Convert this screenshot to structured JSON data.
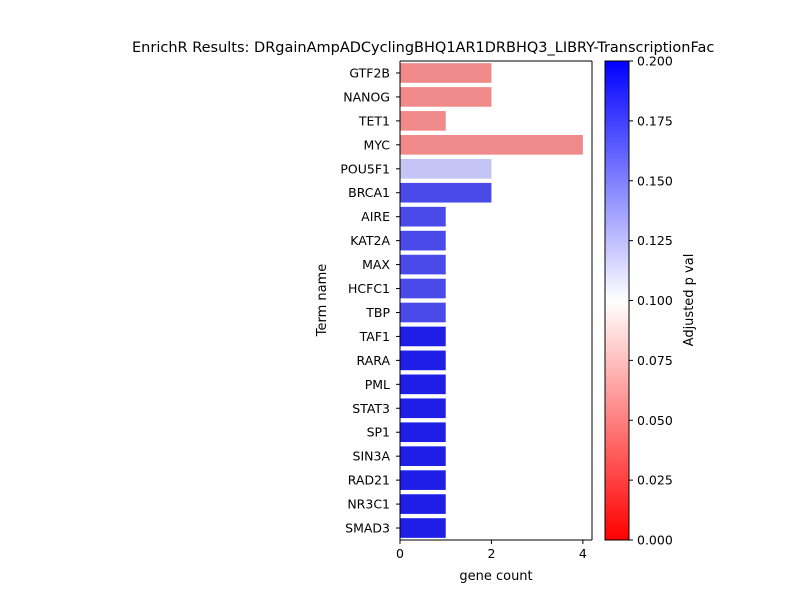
{
  "chart_data": {
    "type": "bar",
    "orientation": "horizontal",
    "title": "EnrichR Results: DRgainAmpADCyclingBHQ1AR1DRBHQ3_LIBRY-TranscriptionFac",
    "xlabel": "gene count",
    "ylabel": "Term name",
    "xlim": [
      0,
      4.2
    ],
    "x_ticks": [
      "0",
      "2",
      "4"
    ],
    "grid": false,
    "categories": [
      "GTF2B",
      "NANOG",
      "TET1",
      "MYC",
      "POU5F1",
      "BRCA1",
      "AIRE",
      "KAT2A",
      "MAX",
      "HCFC1",
      "TBP",
      "TAF1",
      "RARA",
      "PML",
      "STAT3",
      "SP1",
      "SIN3A",
      "RAD21",
      "NR3C1",
      "SMAD3"
    ],
    "values": [
      2,
      2,
      1,
      4,
      2,
      2,
      1,
      1,
      1,
      1,
      1,
      1,
      1,
      1,
      1,
      1,
      1,
      1,
      1,
      1
    ],
    "colors": [
      "#f08a8a",
      "#f08a8a",
      "#f08a8a",
      "#f08a8a",
      "#c4c4f6",
      "#4a4ae8",
      "#4a4ae8",
      "#4a4ae8",
      "#4a4ae8",
      "#4a4ae8",
      "#4a4ae8",
      "#1e1ee6",
      "#1e1ee6",
      "#1e1ee6",
      "#1e1ee6",
      "#1e1ee6",
      "#1e1ee6",
      "#1e1ee6",
      "#1e1ee6",
      "#1e1ee6"
    ],
    "colorbar": {
      "label": "Adjusted p val",
      "range": [
        0,
        0.2
      ],
      "ticks": [
        "0.000",
        "0.025",
        "0.050",
        "0.075",
        "0.100",
        "0.125",
        "0.150",
        "0.175",
        "0.200"
      ],
      "colormap": [
        "#ff0000",
        "#ffffff",
        "#0000ff"
      ]
    }
  }
}
